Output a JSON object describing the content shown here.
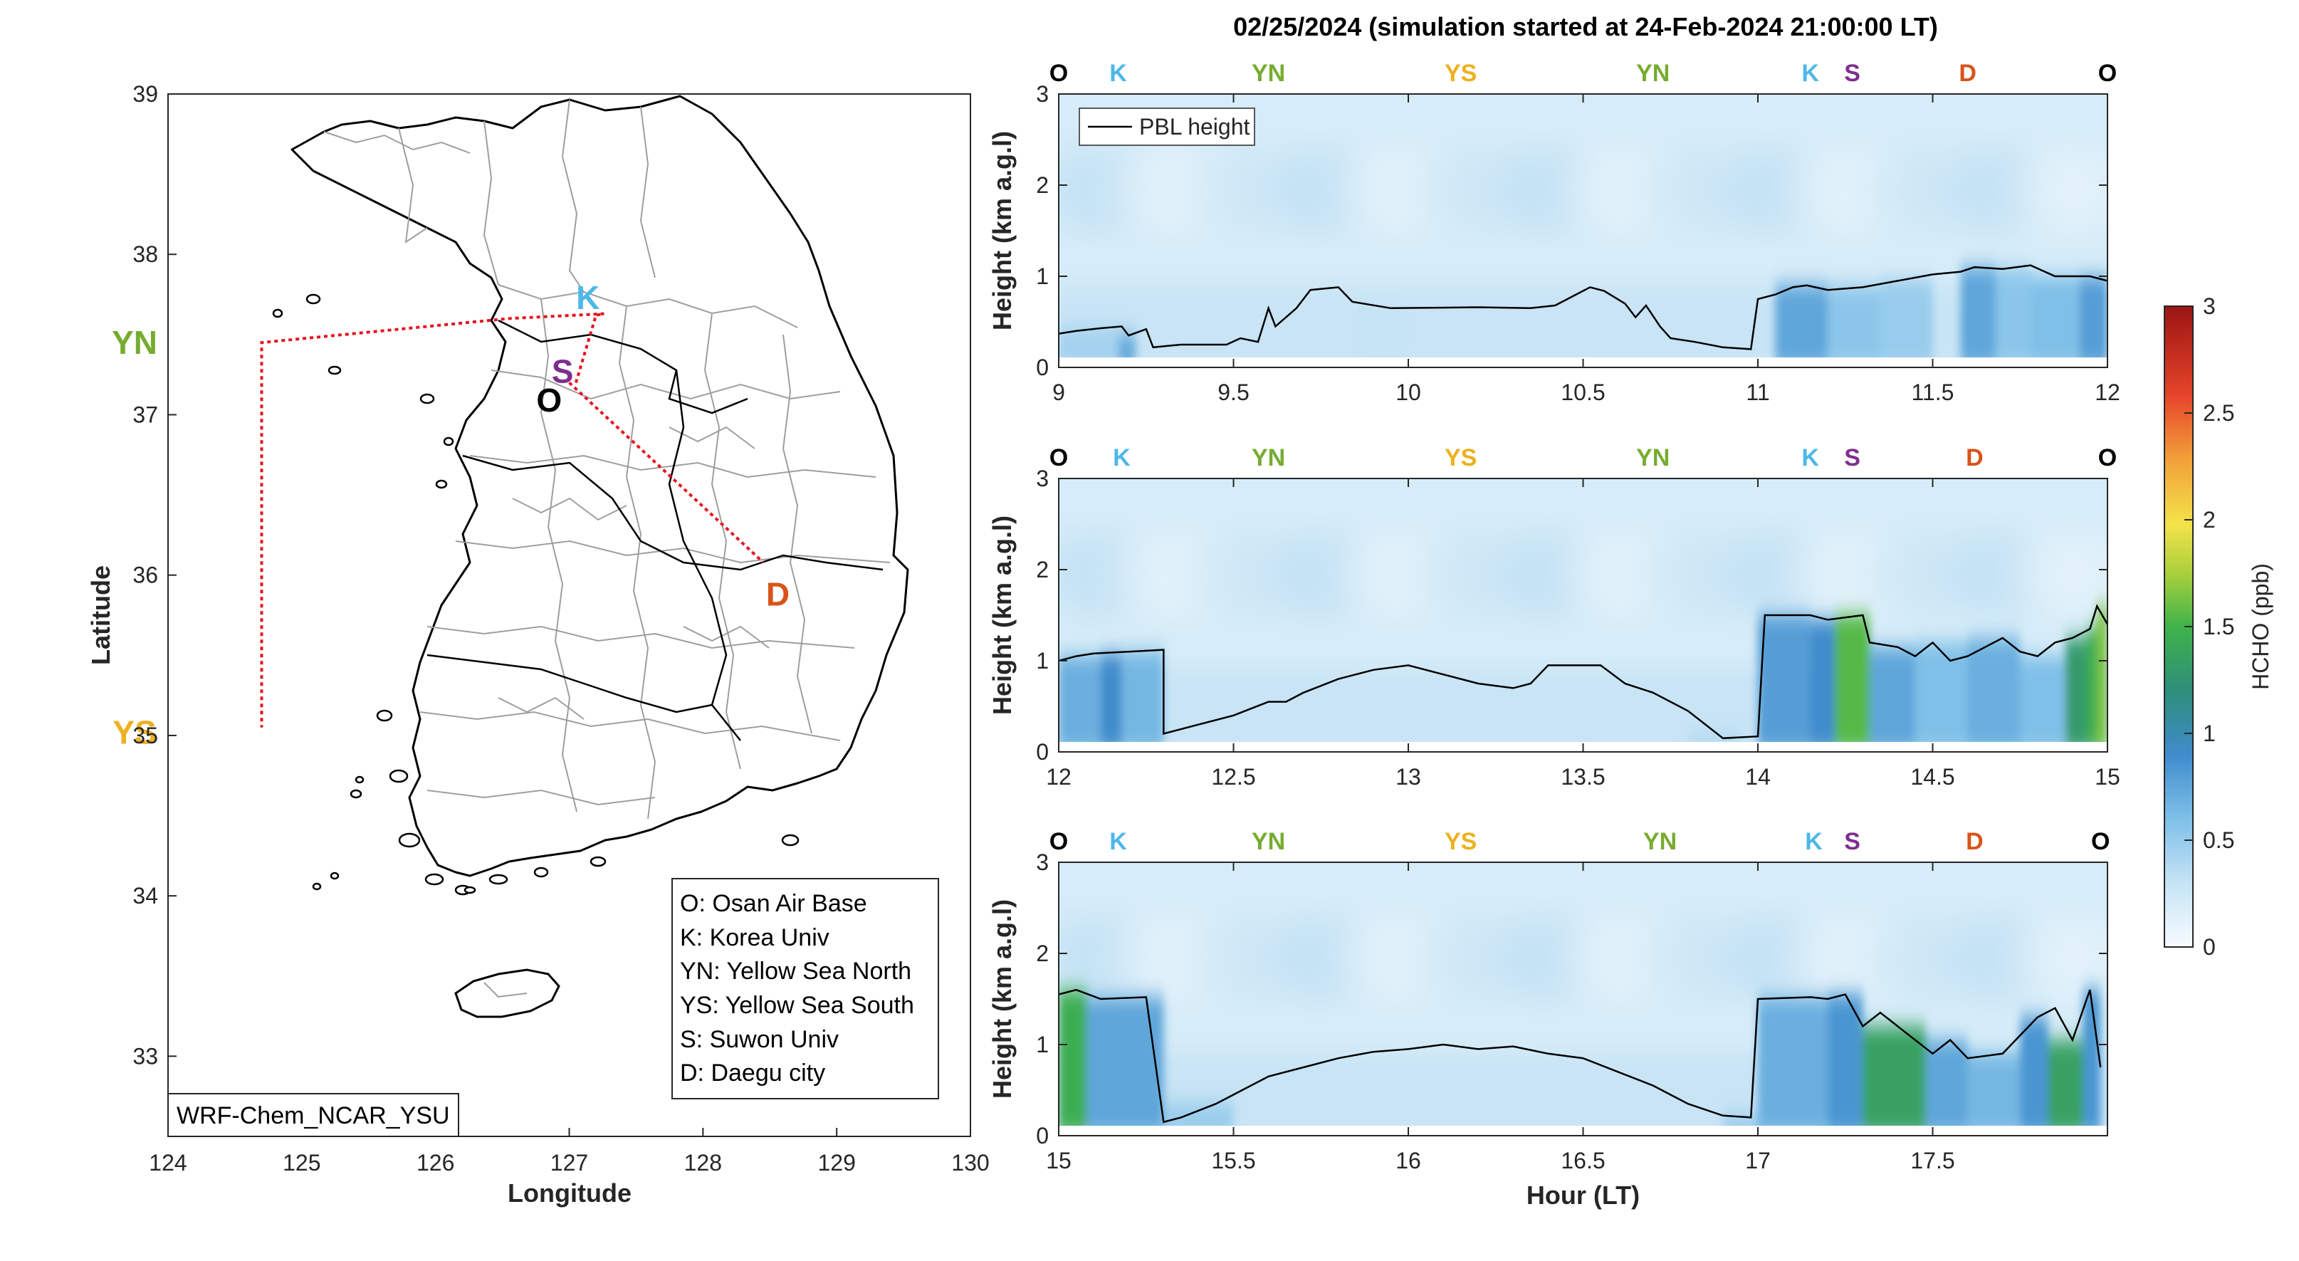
{
  "title": "02/25/2024 (simulation started at 24-Feb-2024 21:00:00 LT)",
  "colors": {
    "O": "#000000",
    "K": "#4db8e8",
    "YN": "#77ac30",
    "YS": "#edb120",
    "S": "#7e2f8e",
    "D": "#d95319",
    "path": "#e8121e"
  },
  "map": {
    "xlabel": "Longitude",
    "ylabel": "Latitude",
    "xlim": [
      124,
      130
    ],
    "ylim": [
      32.5,
      39
    ],
    "xticks": [
      "124",
      "125",
      "126",
      "127",
      "128",
      "129",
      "130"
    ],
    "yticks": [
      "33",
      "34",
      "35",
      "36",
      "37",
      "38",
      "39"
    ],
    "model_label": "WRF-Chem_NCAR_YSU",
    "sites": [
      {
        "code": "O",
        "lon": 126.85,
        "lat": 37.09
      },
      {
        "code": "K",
        "lon": 127.14,
        "lat": 37.73
      },
      {
        "code": "S",
        "lon": 126.95,
        "lat": 37.27
      },
      {
        "code": "YN",
        "lon": 123.75,
        "lat": 37.45
      },
      {
        "code": "YS",
        "lon": 123.75,
        "lat": 35.02
      },
      {
        "code": "D",
        "lon": 128.56,
        "lat": 35.88
      }
    ],
    "flight_track": [
      [
        127.05,
        37.2
      ],
      [
        127.2,
        37.62
      ],
      [
        127.26,
        37.63
      ],
      [
        126.55,
        37.6
      ],
      [
        124.7,
        37.45
      ],
      [
        124.7,
        35.05
      ]
    ],
    "flight_track_2": [
      [
        127.0,
        37.2
      ],
      [
        128.45,
        36.08
      ]
    ],
    "legend": [
      "O: Osan Air Base",
      "K: Korea Univ",
      "YN: Yellow Sea North",
      "YS: Yellow Sea South",
      "S: Suwon Univ",
      "D: Daegu city"
    ]
  },
  "chart_data": {
    "type": "heatmap",
    "title": "02/25/2024 (simulation started at 24-Feb-2024 21:00:00 LT)",
    "xlabel": "Hour (LT)",
    "ylabel": "Height (km a.g.l)",
    "colorbar": {
      "label": "HCHO (ppb)",
      "range": [
        0,
        3
      ],
      "ticks": [
        "0",
        "0.5",
        "1",
        "1.5",
        "2",
        "2.5",
        "3"
      ]
    },
    "site_sequence": [
      "O",
      "K",
      "YN",
      "YS",
      "YN",
      "K",
      "S",
      "D",
      "O"
    ],
    "legend": "PBL height",
    "panels": [
      {
        "xlim": [
          9,
          12
        ],
        "ylim": [
          0,
          3
        ],
        "xticks": [
          "9",
          "9.5",
          "10",
          "10.5",
          "11",
          "11.5",
          "12"
        ],
        "yticks": [
          "0",
          "1",
          "2",
          "3"
        ],
        "site_positions": [
          9.0,
          9.17,
          9.6,
          10.15,
          10.7,
          11.15,
          11.27,
          11.6,
          12.0
        ],
        "pbl": [
          [
            9.0,
            0.37
          ],
          [
            9.05,
            0.4
          ],
          [
            9.12,
            0.43
          ],
          [
            9.18,
            0.45
          ],
          [
            9.2,
            0.35
          ],
          [
            9.25,
            0.42
          ],
          [
            9.27,
            0.22
          ],
          [
            9.35,
            0.25
          ],
          [
            9.48,
            0.25
          ],
          [
            9.52,
            0.32
          ],
          [
            9.57,
            0.28
          ],
          [
            9.6,
            0.65
          ],
          [
            9.62,
            0.45
          ],
          [
            9.68,
            0.65
          ],
          [
            9.72,
            0.85
          ],
          [
            9.8,
            0.88
          ],
          [
            9.84,
            0.72
          ],
          [
            9.95,
            0.65
          ],
          [
            10.2,
            0.66
          ],
          [
            10.35,
            0.65
          ],
          [
            10.42,
            0.68
          ],
          [
            10.48,
            0.8
          ],
          [
            10.52,
            0.88
          ],
          [
            10.56,
            0.84
          ],
          [
            10.62,
            0.7
          ],
          [
            10.65,
            0.55
          ],
          [
            10.68,
            0.68
          ],
          [
            10.72,
            0.45
          ],
          [
            10.75,
            0.32
          ],
          [
            10.82,
            0.28
          ],
          [
            10.9,
            0.22
          ],
          [
            10.98,
            0.2
          ],
          [
            11.0,
            0.75
          ],
          [
            11.05,
            0.8
          ],
          [
            11.1,
            0.88
          ],
          [
            11.14,
            0.9
          ],
          [
            11.2,
            0.85
          ],
          [
            11.3,
            0.88
          ],
          [
            11.4,
            0.95
          ],
          [
            11.5,
            1.02
          ],
          [
            11.58,
            1.05
          ],
          [
            11.62,
            1.1
          ],
          [
            11.7,
            1.08
          ],
          [
            11.78,
            1.12
          ],
          [
            11.85,
            1.0
          ],
          [
            11.95,
            1.0
          ],
          [
            12.0,
            0.95
          ]
        ],
        "hcho_columns": [
          [
            9.0,
            9.18,
            0.45
          ],
          [
            9.17,
            9.22,
            0.75
          ],
          [
            9.85,
            10.0,
            0.3
          ],
          [
            11.05,
            11.2,
            0.75
          ],
          [
            11.2,
            11.35,
            0.55
          ],
          [
            11.35,
            11.5,
            0.5
          ],
          [
            11.58,
            11.68,
            0.75
          ],
          [
            11.68,
            11.78,
            0.55
          ],
          [
            11.78,
            11.92,
            0.6
          ],
          [
            11.92,
            12.0,
            0.8
          ]
        ]
      },
      {
        "xlim": [
          12,
          15
        ],
        "ylim": [
          0,
          3
        ],
        "xticks": [
          "12",
          "12.5",
          "13",
          "13.5",
          "14",
          "14.5",
          "15"
        ],
        "yticks": [
          "0",
          "1",
          "2",
          "3"
        ],
        "site_positions": [
          12.0,
          12.18,
          12.6,
          13.15,
          13.7,
          14.15,
          14.27,
          14.62,
          15.0
        ],
        "pbl": [
          [
            12.0,
            1.0
          ],
          [
            12.05,
            1.05
          ],
          [
            12.1,
            1.08
          ],
          [
            12.2,
            1.1
          ],
          [
            12.3,
            1.12
          ],
          [
            12.3,
            0.2
          ],
          [
            12.4,
            0.3
          ],
          [
            12.5,
            0.4
          ],
          [
            12.6,
            0.55
          ],
          [
            12.65,
            0.55
          ],
          [
            12.7,
            0.65
          ],
          [
            12.8,
            0.8
          ],
          [
            12.9,
            0.9
          ],
          [
            13.0,
            0.95
          ],
          [
            13.1,
            0.85
          ],
          [
            13.2,
            0.75
          ],
          [
            13.3,
            0.7
          ],
          [
            13.35,
            0.75
          ],
          [
            13.4,
            0.95
          ],
          [
            13.55,
            0.95
          ],
          [
            13.62,
            0.75
          ],
          [
            13.7,
            0.65
          ],
          [
            13.8,
            0.45
          ],
          [
            13.9,
            0.15
          ],
          [
            14.0,
            0.17
          ],
          [
            14.02,
            1.5
          ],
          [
            14.15,
            1.5
          ],
          [
            14.2,
            1.45
          ],
          [
            14.3,
            1.5
          ],
          [
            14.32,
            1.2
          ],
          [
            14.4,
            1.15
          ],
          [
            14.45,
            1.05
          ],
          [
            14.5,
            1.2
          ],
          [
            14.55,
            1.0
          ],
          [
            14.6,
            1.05
          ],
          [
            14.65,
            1.15
          ],
          [
            14.7,
            1.25
          ],
          [
            14.75,
            1.1
          ],
          [
            14.8,
            1.05
          ],
          [
            14.85,
            1.2
          ],
          [
            14.9,
            1.25
          ],
          [
            14.95,
            1.35
          ],
          [
            14.97,
            1.6
          ],
          [
            15.0,
            1.4
          ]
        ],
        "hcho_columns": [
          [
            12.0,
            12.12,
            0.7
          ],
          [
            12.12,
            12.18,
            0.9
          ],
          [
            12.18,
            12.3,
            0.65
          ],
          [
            13.8,
            13.95,
            0.45
          ],
          [
            14.0,
            14.15,
            0.8
          ],
          [
            14.15,
            14.22,
            0.9
          ],
          [
            14.22,
            14.32,
            1.55
          ],
          [
            14.32,
            14.45,
            0.75
          ],
          [
            14.45,
            14.6,
            0.6
          ],
          [
            14.6,
            14.75,
            0.7
          ],
          [
            14.75,
            14.88,
            0.6
          ],
          [
            14.88,
            14.94,
            1.3
          ],
          [
            14.94,
            14.97,
            1.45
          ],
          [
            14.97,
            15.0,
            1.65
          ]
        ]
      },
      {
        "xlim": [
          15,
          18
        ],
        "ylim": [
          0,
          3
        ],
        "xticks": [
          "15",
          "15.5",
          "16",
          "16.5",
          "17",
          "17.5"
        ],
        "yticks": [
          "0",
          "1",
          "2",
          "3"
        ],
        "site_positions": [
          15.0,
          15.17,
          15.6,
          16.15,
          16.72,
          17.16,
          17.27,
          17.62,
          17.98
        ],
        "pbl": [
          [
            15.0,
            1.55
          ],
          [
            15.05,
            1.6
          ],
          [
            15.12,
            1.5
          ],
          [
            15.25,
            1.52
          ],
          [
            15.3,
            0.15
          ],
          [
            15.35,
            0.2
          ],
          [
            15.45,
            0.35
          ],
          [
            15.5,
            0.45
          ],
          [
            15.6,
            0.65
          ],
          [
            15.7,
            0.75
          ],
          [
            15.8,
            0.85
          ],
          [
            15.9,
            0.92
          ],
          [
            16.0,
            0.95
          ],
          [
            16.1,
            1.0
          ],
          [
            16.2,
            0.95
          ],
          [
            16.3,
            0.98
          ],
          [
            16.4,
            0.9
          ],
          [
            16.5,
            0.85
          ],
          [
            16.6,
            0.7
          ],
          [
            16.7,
            0.55
          ],
          [
            16.8,
            0.35
          ],
          [
            16.9,
            0.22
          ],
          [
            16.98,
            0.2
          ],
          [
            17.0,
            1.5
          ],
          [
            17.15,
            1.52
          ],
          [
            17.2,
            1.5
          ],
          [
            17.25,
            1.55
          ],
          [
            17.3,
            1.2
          ],
          [
            17.35,
            1.35
          ],
          [
            17.4,
            1.2
          ],
          [
            17.5,
            0.9
          ],
          [
            17.55,
            1.05
          ],
          [
            17.6,
            0.85
          ],
          [
            17.7,
            0.9
          ],
          [
            17.8,
            1.3
          ],
          [
            17.85,
            1.4
          ],
          [
            17.9,
            1.05
          ],
          [
            17.95,
            1.6
          ],
          [
            17.98,
            0.75
          ]
        ],
        "hcho_columns": [
          [
            15.0,
            15.08,
            1.45
          ],
          [
            15.08,
            15.3,
            0.75
          ],
          [
            15.3,
            15.5,
            0.5
          ],
          [
            16.9,
            17.0,
            0.55
          ],
          [
            17.0,
            17.2,
            0.7
          ],
          [
            17.2,
            17.3,
            0.85
          ],
          [
            17.3,
            17.48,
            1.35
          ],
          [
            17.48,
            17.6,
            0.75
          ],
          [
            17.6,
            17.75,
            0.65
          ],
          [
            17.75,
            17.83,
            0.85
          ],
          [
            17.83,
            17.93,
            1.35
          ],
          [
            17.93,
            17.98,
            0.85
          ]
        ]
      }
    ]
  }
}
